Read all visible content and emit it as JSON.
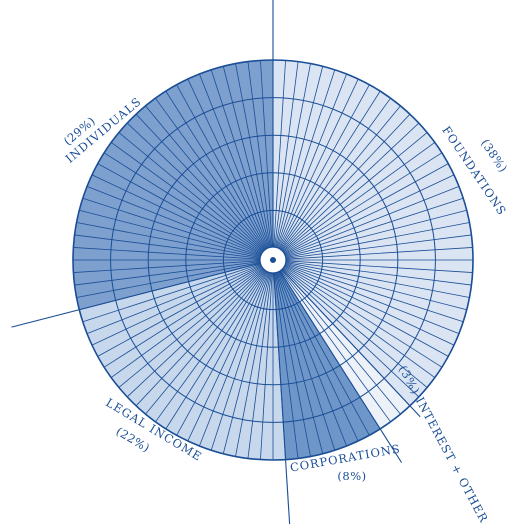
{
  "chart_data": {
    "type": "pie",
    "title": "",
    "slices": [
      {
        "name": "FOUNDATIONS",
        "value": 38,
        "value_label": "(38%)",
        "color": "#dae4f2"
      },
      {
        "name": "(3%) INTEREST + OTHER",
        "value": 3,
        "value_label": "",
        "color": "#edf2f9"
      },
      {
        "name": "CORPORATIONS",
        "value": 8,
        "value_label": "(8%)",
        "color": "#6f96c8"
      },
      {
        "name": "LEGAL INCOME",
        "value": 22,
        "value_label": "(22%)",
        "color": "#c7d7ec"
      },
      {
        "name": "INDIVIDUALS",
        "value": 29,
        "value_label": "(29%)",
        "color": "#7ea0cf"
      }
    ],
    "start": "12 o'clock",
    "direction": "clockwise",
    "line_color": "#1a4e96",
    "legend": "none"
  }
}
